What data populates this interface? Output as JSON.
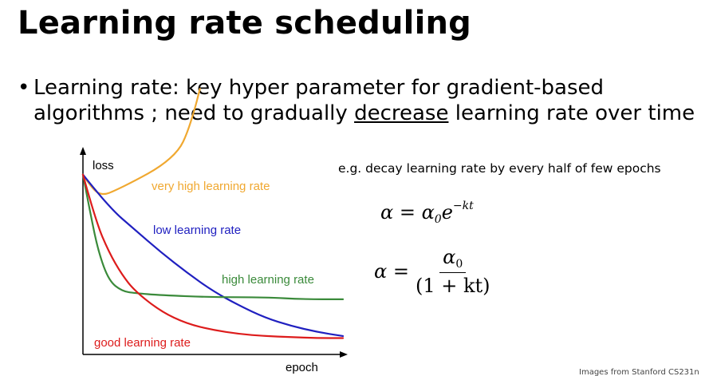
{
  "slide": {
    "title": "Learning rate scheduling",
    "bullet": {
      "marker": "•",
      "line_prefix": "Learning rate: key hyper parameter for gradient-based algorithms ; need to gradually ",
      "underlined": "decrease",
      "line_suffix": " learning rate over time"
    },
    "example_text": "e.g. decay learning rate by every half of few epochs",
    "formula1": {
      "lhs": "α = α",
      "sub": "0",
      "base": "e",
      "exponent": "−kt"
    },
    "formula2": {
      "lhs": "α =",
      "numerator": "α",
      "numerator_sub": "0",
      "denominator": "(1 + kt)"
    },
    "credit": "Images from Stanford CS231n"
  },
  "chart_data": {
    "type": "line",
    "xlabel": "epoch",
    "ylabel": "loss",
    "grid": false,
    "series": [
      {
        "name": "very high learning rate",
        "color": "#f0a830",
        "x": [
          0,
          0.04,
          0.08,
          0.12,
          0.2,
          0.3,
          0.37,
          0.4,
          0.43,
          0.45
        ],
        "y": [
          0.88,
          0.8,
          0.78,
          0.8,
          0.85,
          0.92,
          1.0,
          1.08,
          1.2,
          1.3
        ]
      },
      {
        "name": "low learning rate",
        "color": "#2020c0",
        "x": [
          0,
          0.1,
          0.2,
          0.3,
          0.4,
          0.5,
          0.6,
          0.7,
          0.8,
          0.9,
          1.0
        ],
        "y": [
          0.88,
          0.72,
          0.61,
          0.5,
          0.4,
          0.31,
          0.24,
          0.18,
          0.14,
          0.11,
          0.09
        ]
      },
      {
        "name": "high learning rate",
        "color": "#3a8a3a",
        "x": [
          0,
          0.03,
          0.06,
          0.1,
          0.15,
          0.2,
          0.3,
          0.5,
          0.7,
          0.85,
          1.0
        ],
        "y": [
          0.88,
          0.68,
          0.5,
          0.36,
          0.31,
          0.3,
          0.29,
          0.28,
          0.28,
          0.27,
          0.27
        ]
      },
      {
        "name": "good learning rate",
        "color": "#dd1c1c",
        "x": [
          0,
          0.05,
          0.1,
          0.15,
          0.2,
          0.3,
          0.4,
          0.5,
          0.6,
          0.7,
          0.8,
          0.9,
          1.0
        ],
        "y": [
          0.88,
          0.65,
          0.5,
          0.39,
          0.31,
          0.21,
          0.15,
          0.12,
          0.1,
          0.09,
          0.085,
          0.08,
          0.08
        ]
      }
    ]
  }
}
